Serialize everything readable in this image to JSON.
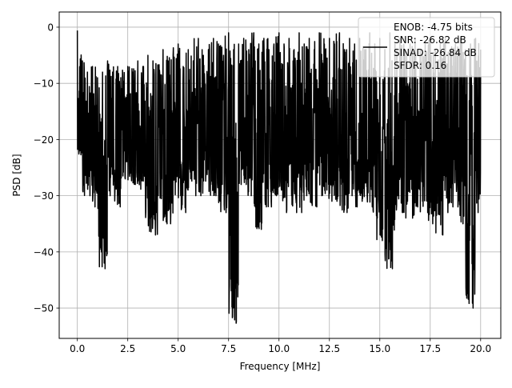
{
  "chart_data": {
    "type": "line",
    "xlabel": "Frequency [MHz]",
    "ylabel": "PSD [dB]",
    "xlim": [
      -0.9,
      21.0
    ],
    "ylim": [
      -55.4,
      2.7
    ],
    "xticks": [
      0.0,
      2.5,
      5.0,
      7.5,
      10.0,
      12.5,
      15.0,
      17.5,
      20.0
    ],
    "xtick_labels": [
      "0.0",
      "2.5",
      "5.0",
      "7.5",
      "10.0",
      "12.5",
      "15.0",
      "17.5",
      "20.0"
    ],
    "yticks": [
      0,
      -10,
      -20,
      -30,
      -40,
      -50
    ],
    "ytick_labels": [
      "0",
      "−10",
      "−20",
      "−30",
      "−40",
      "−50"
    ],
    "grid": true,
    "legend_position": "top-right",
    "series": [
      {
        "name": "ENOB: -4.75 bits\nSNR: -26.82 dB\nSINAD: -26.84 dB\nSFDR: 0.16",
        "color": "#000000",
        "x": [
          0.0,
          0.25,
          0.5,
          0.75,
          1.0,
          1.25,
          1.5,
          1.75,
          2.0,
          2.25,
          2.5,
          2.75,
          3.0,
          3.25,
          3.5,
          3.75,
          4.0,
          4.25,
          4.5,
          4.75,
          5.0,
          5.25,
          5.5,
          5.75,
          6.0,
          6.25,
          6.5,
          6.75,
          7.0,
          7.25,
          7.5,
          7.75,
          8.0,
          8.25,
          8.5,
          8.75,
          9.0,
          9.25,
          9.5,
          9.75,
          10.0,
          10.25,
          10.5,
          10.75,
          11.0,
          11.25,
          11.5,
          11.75,
          12.0,
          12.25,
          12.5,
          12.75,
          13.0,
          13.25,
          13.5,
          13.75,
          14.0,
          14.25,
          14.5,
          14.75,
          15.0,
          15.25,
          15.5,
          15.75,
          16.0,
          16.25,
          16.5,
          16.75,
          17.0,
          17.25,
          17.5,
          17.75,
          18.0,
          18.25,
          18.5,
          18.75,
          19.0,
          19.25,
          19.5,
          19.75,
          20.0
        ],
        "max": [
          -0.6,
          -6,
          -8,
          -7,
          -9,
          -8,
          -6,
          -8,
          -7,
          -9,
          -7,
          -8,
          -6,
          -7,
          -5,
          -6,
          -8,
          -4,
          -6,
          -5,
          -3,
          -7,
          -4,
          -6,
          -2,
          -5,
          -4,
          -2,
          -3,
          -5,
          -1,
          -4,
          -3,
          -2,
          -4,
          -1,
          -3,
          -2,
          -4,
          -3,
          -1,
          -3,
          -2,
          -4,
          -1,
          -3,
          -2,
          -4,
          -1,
          -3,
          -2,
          -3,
          -1,
          -4,
          -2,
          -3,
          -2,
          -4,
          -1,
          -3,
          -2,
          -4,
          -1,
          -3,
          -2,
          -4,
          -3,
          -2,
          -4,
          -3,
          -2,
          -4,
          -3,
          -2,
          -4,
          -3,
          -2,
          -4,
          -3,
          -2,
          -4
        ],
        "min": [
          -22,
          -24,
          -30,
          -32,
          -28,
          -43,
          -30,
          -28,
          -32,
          -27,
          -26,
          -28,
          -27,
          -29,
          -34,
          -37,
          -30,
          -32,
          -35,
          -26,
          -30,
          -33,
          -27,
          -29,
          -30,
          -26,
          -28,
          -30,
          -29,
          -33,
          -30,
          -52.7,
          -27,
          -28,
          -30,
          -29,
          -36,
          -31,
          -32,
          -30,
          -29,
          -33,
          -30,
          -32,
          -33,
          -30,
          -29,
          -32,
          -30,
          -29,
          -31,
          -30,
          -31,
          -33,
          -30,
          -32,
          -31,
          -30,
          -32,
          -34,
          -38,
          -31,
          -43,
          -30,
          -33,
          -31,
          -34,
          -32,
          -31,
          -33,
          -35,
          -30,
          -37,
          -33,
          -31,
          -32,
          -34,
          -35,
          -50,
          -33,
          -25
        ]
      }
    ]
  }
}
